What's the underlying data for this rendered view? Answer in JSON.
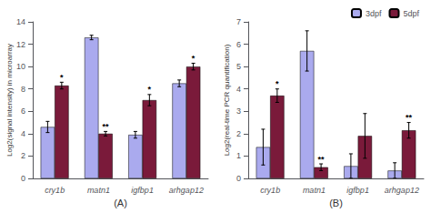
{
  "chart_data": [
    {
      "type": "bar",
      "xlabel": "(A)",
      "ylabel": "Log2(signal intensity) in microarray",
      "categories": [
        "cry1b",
        "matn1",
        "igfbp1",
        "arhgap12"
      ],
      "ylim": [
        0,
        14
      ],
      "yticks": [
        0,
        2,
        4,
        6,
        8,
        10,
        12,
        14
      ],
      "grid": false,
      "series": [
        {
          "name": "3dpf",
          "color": "#aaaaee",
          "values": [
            4.6,
            12.6,
            3.9,
            8.5
          ],
          "errors": [
            0.5,
            0.2,
            0.3,
            0.3
          ]
        },
        {
          "name": "5dpf",
          "color": "#7a1a3a",
          "values": [
            8.3,
            4.0,
            7.0,
            10.0
          ],
          "errors": [
            0.3,
            0.2,
            0.5,
            0.3
          ],
          "annotations": [
            "*",
            "**",
            "*",
            "*"
          ]
        }
      ]
    },
    {
      "type": "bar",
      "xlabel": "(B)",
      "ylabel": "Log2(real-time PCR quantification)",
      "categories": [
        "cry1b",
        "matn1",
        "igfbp1",
        "arhgap12"
      ],
      "ylim": [
        0,
        7
      ],
      "yticks": [
        0,
        1,
        2,
        3,
        4,
        5,
        6,
        7
      ],
      "grid": false,
      "legend": "upper right",
      "series": [
        {
          "name": "3dpf",
          "color": "#aaaaee",
          "values": [
            1.4,
            5.7,
            0.55,
            0.35
          ],
          "errors": [
            0.8,
            0.9,
            0.55,
            0.35
          ]
        },
        {
          "name": "5dpf",
          "color": "#7a1a3a",
          "values": [
            3.7,
            0.5,
            1.9,
            2.15
          ],
          "errors": [
            0.3,
            0.15,
            1.0,
            0.35
          ],
          "annotations": [
            "*",
            "**",
            null,
            "**"
          ]
        }
      ]
    }
  ]
}
